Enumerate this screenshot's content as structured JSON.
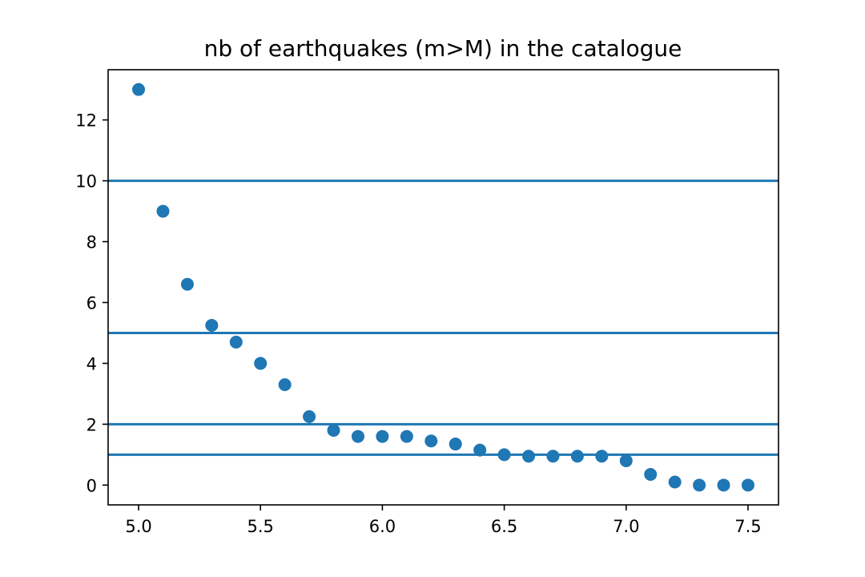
{
  "chart_data": {
    "type": "scatter",
    "title": "nb of earthquakes (m>M) in the catalogue",
    "xlabel": "",
    "ylabel": "",
    "xlim": [
      4.875,
      7.625
    ],
    "ylim": [
      -0.65,
      13.65
    ],
    "xticks": [
      5.0,
      5.5,
      6.0,
      6.5,
      7.0,
      7.5
    ],
    "xtick_labels": [
      "5.0",
      "5.5",
      "6.0",
      "6.5",
      "7.0",
      "7.5"
    ],
    "yticks": [
      0,
      2,
      4,
      6,
      8,
      10,
      12
    ],
    "ytick_labels": [
      "0",
      "2",
      "4",
      "6",
      "8",
      "10",
      "12"
    ],
    "grid": false,
    "series": [
      {
        "color": "#1f77b4",
        "x": [
          5.0,
          5.1,
          5.2,
          5.3,
          5.4,
          5.5,
          5.6,
          5.7,
          5.8,
          5.9,
          6.0,
          6.1,
          6.2,
          6.3,
          6.4,
          6.5,
          6.6,
          6.7,
          6.8,
          6.9,
          7.0,
          7.1,
          7.2,
          7.3,
          7.4,
          7.5
        ],
        "y": [
          13.0,
          9.0,
          6.6,
          5.25,
          4.7,
          4.0,
          3.3,
          2.25,
          1.8,
          1.6,
          1.6,
          1.6,
          1.45,
          1.35,
          1.15,
          1.0,
          0.95,
          0.95,
          0.95,
          0.95,
          0.8,
          0.35,
          0.1,
          0.0,
          0.0,
          0.0
        ]
      }
    ],
    "hlines": {
      "color": "#1f77b4",
      "values": [
        10,
        5,
        2,
        1
      ]
    }
  }
}
